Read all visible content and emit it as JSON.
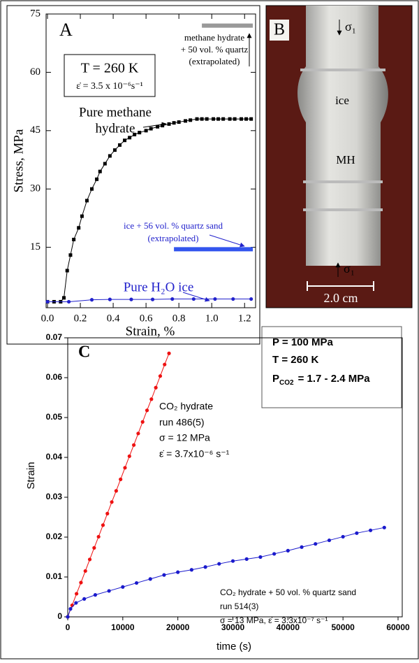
{
  "chart_data": [
    {
      "type": "line",
      "xlabel": "Strain, %",
      "ylabel": "Stress, MPa",
      "xlim": [
        0,
        1.25
      ],
      "ylim": [
        0,
        75
      ],
      "xticks": [
        {
          "value": 0,
          "label": "0.0"
        },
        0.2,
        0.4,
        0.6,
        0.8,
        {
          "value": 1,
          "label": "1.0"
        },
        1.2
      ],
      "yticks": [
        15,
        30,
        45,
        60,
        75
      ],
      "grid": false,
      "annotations": [
        "A",
        "T = 260 K",
        "ε̇ = 3.5 x 10⁻⁶s⁻¹",
        "methane hydrate",
        "+ 50 vol. % quartz",
        "(extrapolated)",
        "Pure methane",
        "hydrate",
        "ice + 56 vol. % quartz sand",
        "(extrapolated)",
        "Pure H₂O ice"
      ],
      "series": [
        {
          "color": "#000000",
          "marker": "square",
          "line_width": 1,
          "x": [
            0,
            0.04,
            0.08,
            0.1,
            0.12,
            0.14,
            0.16,
            0.19,
            0.21,
            0.24,
            0.27,
            0.3,
            0.32,
            0.35,
            0.38,
            0.41,
            0.44,
            0.47,
            0.5,
            0.53,
            0.56,
            0.6,
            0.63,
            0.67,
            0.7,
            0.74,
            0.77,
            0.8,
            0.84,
            0.87,
            0.91,
            0.94,
            0.97,
            1.01,
            1.04,
            1.07,
            1.11,
            1.14,
            1.18,
            1.21,
            1.24
          ],
          "values": [
            1,
            1,
            1,
            2,
            9,
            13,
            17,
            20,
            23,
            27,
            30,
            32.5,
            34.5,
            36.5,
            38.5,
            40,
            41.3,
            42.5,
            43.2,
            44,
            44.5,
            45,
            45.5,
            46,
            46.3,
            46.7,
            47,
            47.2,
            47.5,
            47.7,
            48,
            48,
            48,
            48,
            48,
            48,
            48,
            48,
            48,
            48,
            48
          ]
        },
        {
          "color": "#2222cc",
          "marker": "circle",
          "line_width": 1,
          "x": [
            0,
            0.13,
            0.27,
            0.38,
            0.51,
            0.64,
            0.76,
            0.89,
            1.02,
            1.13,
            1.24
          ],
          "values": [
            1,
            1,
            1.5,
            1.6,
            1.6,
            1.6,
            1.7,
            1.7,
            1.7,
            1.7,
            1.7
          ]
        },
        {
          "color": "#999999",
          "marker": "none",
          "line_width": 6,
          "x": [
            0.94,
            1.25
          ],
          "values": [
            72,
            72
          ]
        },
        {
          "color": "#3355ee",
          "marker": "none",
          "line_width": 6,
          "x": [
            0.77,
            1.25
          ],
          "values": [
            14.5,
            14.5
          ]
        }
      ]
    },
    {
      "type": "line",
      "xlabel": "time  (s)",
      "ylabel": "Strain",
      "xlim": [
        0,
        60000
      ],
      "ylim": [
        0,
        0.07
      ],
      "xticks": [
        0,
        10000,
        20000,
        30000,
        40000,
        50000,
        60000
      ],
      "yticks": [
        0,
        0.01,
        0.02,
        0.03,
        0.04,
        0.05,
        0.06,
        0.07
      ],
      "grid": false,
      "annotations": [
        "C",
        "P = 100 MPa",
        "T = 260 K",
        "CO₂ hydrate",
        "run  486(5)",
        "σ = 12 MPa",
        "ε̇ = 3.7x10⁻⁶ s⁻¹",
        "CO₂ hydrate + 50 vol. % quartz sand",
        "run 514(3)",
        "σ = 13 MPa,  ε̇ = 3.3x10⁻⁷ s⁻¹"
      ],
      "pco2": {
        "symbol": "P",
        "subscript": "CO2",
        "text": "= 1.7 - 2.4 MPa"
      },
      "series": [
        {
          "color": "#ee1111",
          "marker": "circle",
          "line_width": 1,
          "x": [
            0,
            800,
            1600,
            2400,
            3200,
            4000,
            4800,
            5600,
            6400,
            7200,
            8000,
            8800,
            9600,
            10400,
            11200,
            12000,
            12800,
            13600,
            14400,
            15200,
            16000,
            16800,
            17600,
            18400
          ],
          "values": [
            0,
            0.0029,
            0.0058,
            0.0086,
            0.0115,
            0.0144,
            0.0173,
            0.0201,
            0.023,
            0.0259,
            0.0288,
            0.0316,
            0.0345,
            0.0374,
            0.0403,
            0.0431,
            0.046,
            0.0489,
            0.0518,
            0.0546,
            0.0575,
            0.0604,
            0.0633,
            0.0661
          ]
        },
        {
          "color": "#1a1acc",
          "marker": "circle",
          "line_width": 1,
          "x": [
            0,
            500,
            1500,
            3000,
            5000,
            7500,
            10000,
            12500,
            15000,
            17500,
            20000,
            22500,
            25000,
            27500,
            30000,
            32500,
            35000,
            37500,
            40000,
            42500,
            45000,
            47500,
            50000,
            52500,
            55000,
            57500
          ],
          "values": [
            0,
            0.002,
            0.0035,
            0.0045,
            0.0055,
            0.0065,
            0.0075,
            0.0085,
            0.0095,
            0.0105,
            0.0112,
            0.0118,
            0.0125,
            0.0133,
            0.014,
            0.0145,
            0.015,
            0.0158,
            0.0166,
            0.0175,
            0.0183,
            0.0192,
            0.0201,
            0.021,
            0.0217,
            0.0224
          ]
        }
      ]
    }
  ],
  "photo": {
    "label": "B",
    "top_load": "σ₁",
    "upper_region": "ice",
    "lower_region": "MH",
    "bottom_load": "σ₁",
    "scale_bar": "2.0 cm"
  }
}
